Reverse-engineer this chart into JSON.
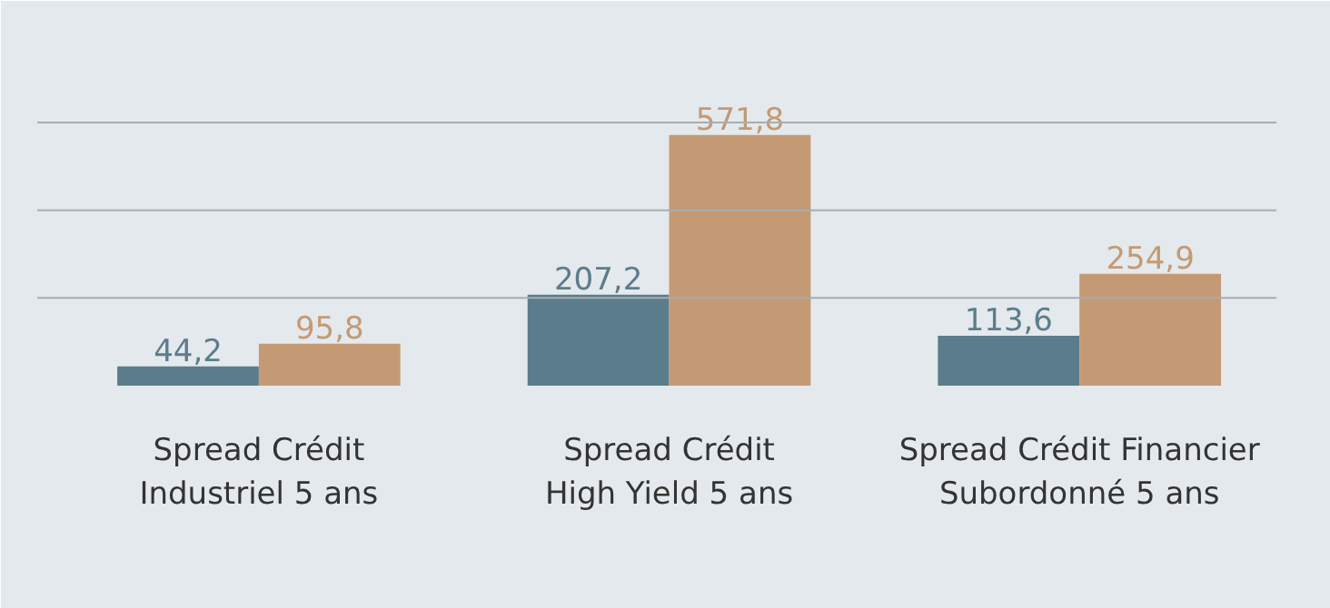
{
  "chart_data": {
    "type": "bar",
    "categories": [
      "Spread Crédit\nIndustriel 5 ans",
      "Spread Crédit\nHigh Yield 5 ans",
      "Spread Crédit Financier\nSubordonné 5 ans"
    ],
    "series": [
      {
        "color": "#5b7d8b",
        "values": [
          44.2,
          207.2,
          113.6
        ],
        "value_labels": [
          "44,2",
          "207,2",
          "113,6"
        ]
      },
      {
        "color": "#c49a74",
        "values": [
          95.8,
          571.8,
          254.9
        ],
        "value_labels": [
          "95,8",
          "571,8",
          "254,9"
        ]
      }
    ],
    "ref_lines": [
      {
        "axis": "y",
        "value": 200,
        "color": "#a8adb2"
      },
      {
        "axis": "y",
        "value": 400,
        "color": "#a8adb2"
      },
      {
        "axis": "y",
        "value": 600,
        "color": "#a8adb2"
      }
    ],
    "tick_labels": "x"
  }
}
